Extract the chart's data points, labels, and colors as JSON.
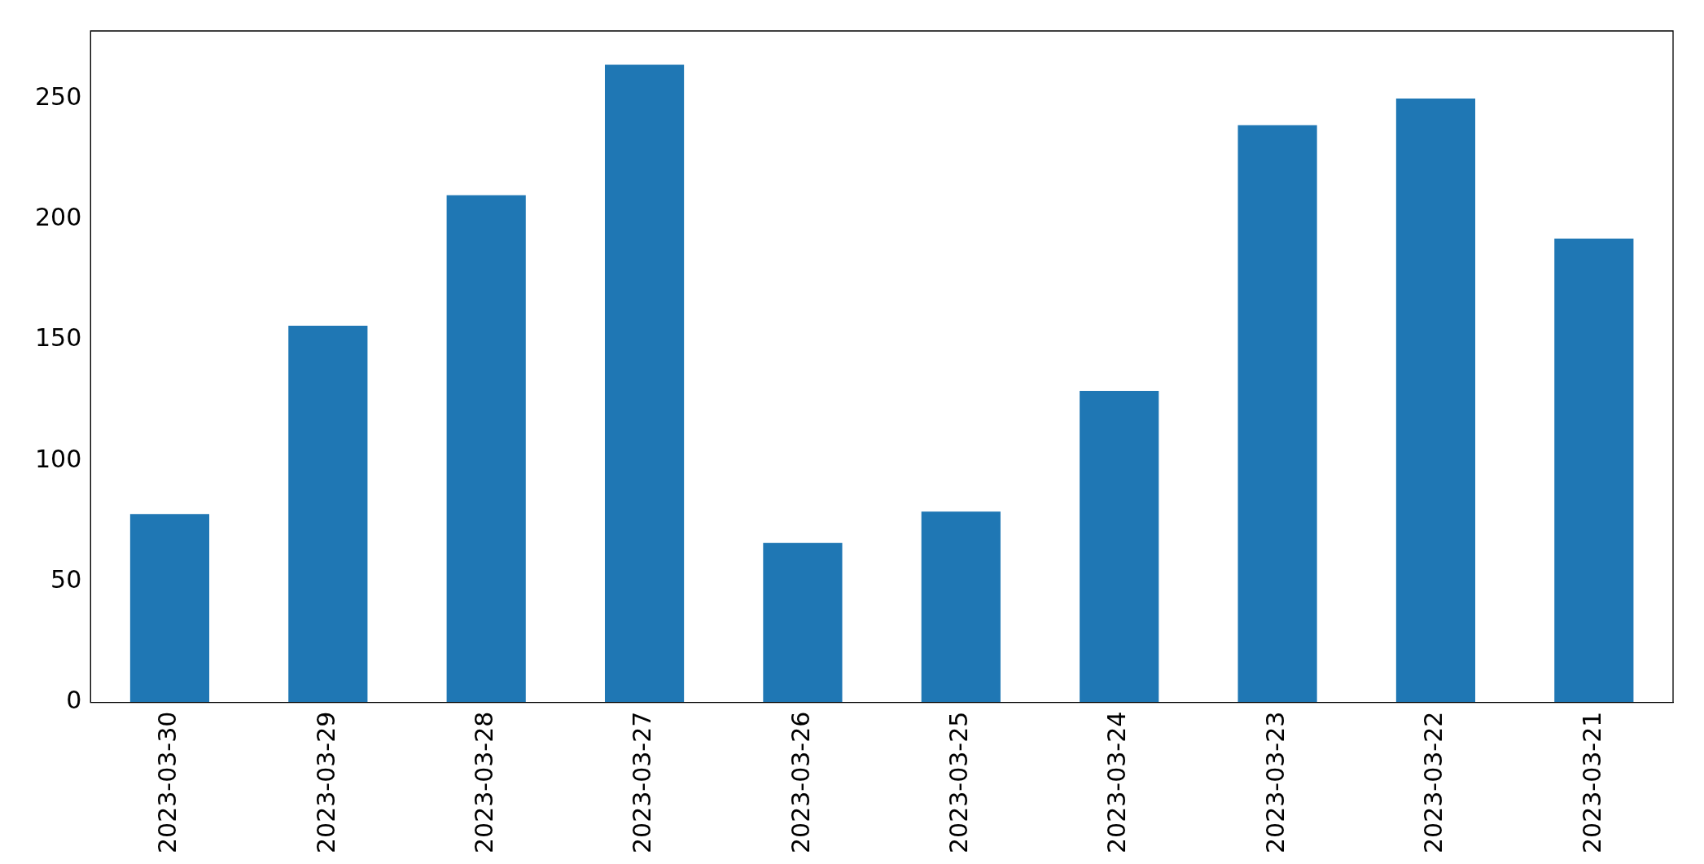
{
  "chart_data": {
    "type": "bar",
    "categories": [
      "2023-03-30",
      "2023-03-29",
      "2023-03-28",
      "2023-03-27",
      "2023-03-26",
      "2023-03-25",
      "2023-03-24",
      "2023-03-23",
      "2023-03-22",
      "2023-03-21"
    ],
    "values": [
      78,
      156,
      210,
      264,
      66,
      79,
      129,
      239,
      250,
      192
    ],
    "color": "#1f77b4",
    "ylim": [
      0,
      278
    ],
    "yticks": [
      0,
      50,
      100,
      150,
      200,
      250
    ],
    "grid": false,
    "legend": false
  }
}
